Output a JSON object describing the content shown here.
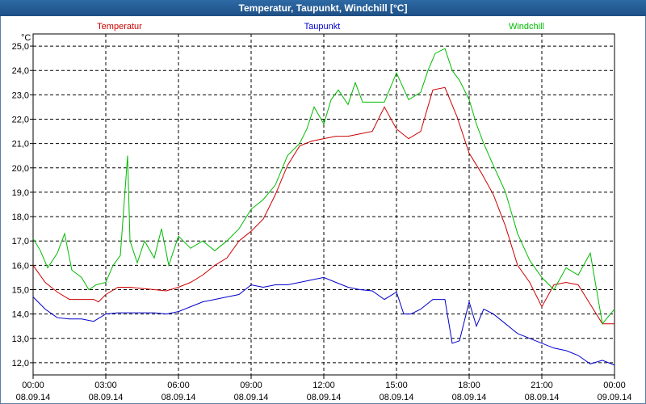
{
  "window": {
    "title": "Temperatur, Taupunkt, Windchill [°C]"
  },
  "chart_data": {
    "type": "line",
    "title": "Temperatur, Taupunkt, Windchill [°C]",
    "ylabel": "°C",
    "ylim": [
      11.5,
      25.5
    ],
    "xlim": [
      0,
      24
    ],
    "y_ticks": [
      12,
      13,
      14,
      15,
      16,
      17,
      18,
      19,
      20,
      21,
      22,
      23,
      24,
      25
    ],
    "y_tick_labels": [
      "12,0",
      "13,0",
      "14,0",
      "15,0",
      "16,0",
      "17,0",
      "18,0",
      "19,0",
      "20,0",
      "21,0",
      "22,0",
      "23,0",
      "24,0",
      "25,0"
    ],
    "x_ticks": [
      {
        "time": "00:00",
        "date": "08.09.14"
      },
      {
        "time": "03:00",
        "date": "08.09.14"
      },
      {
        "time": "06:00",
        "date": "08.09.14"
      },
      {
        "time": "09:00",
        "date": "08.09.14"
      },
      {
        "time": "12:00",
        "date": "08.09.14"
      },
      {
        "time": "15:00",
        "date": "08.09.14"
      },
      {
        "time": "18:00",
        "date": "08.09.14"
      },
      {
        "time": "21:00",
        "date": "08.09.14"
      },
      {
        "time": "00:00",
        "date": "09.09.14"
      }
    ],
    "grid": true,
    "series": [
      {
        "name": "Temperatur",
        "color": "#cc0000",
        "legend_position": "left",
        "x": [
          0,
          0.5,
          1,
          1.5,
          2,
          2.5,
          2.7,
          3,
          3.5,
          4,
          5,
          5.5,
          6,
          6.5,
          7,
          7.5,
          8,
          8.5,
          9,
          9.5,
          10,
          10.5,
          11,
          11.5,
          12,
          12.5,
          13,
          13.5,
          14,
          14.5,
          15,
          15.5,
          16,
          16.5,
          17,
          17.5,
          18,
          18.5,
          19,
          19.5,
          20,
          20.5,
          21,
          21.5,
          22,
          22.5,
          23,
          23.5,
          24
        ],
        "y": [
          16.0,
          15.3,
          14.9,
          14.6,
          14.6,
          14.6,
          14.5,
          14.8,
          15.1,
          15.1,
          15.0,
          14.95,
          15.1,
          15.3,
          15.6,
          16.0,
          16.3,
          17.0,
          17.4,
          17.9,
          18.9,
          20.1,
          20.9,
          21.1,
          21.2,
          21.3,
          21.3,
          21.4,
          21.5,
          22.5,
          21.6,
          21.2,
          21.5,
          23.2,
          23.3,
          22.1,
          20.6,
          19.8,
          18.9,
          17.6,
          16.0,
          15.3,
          14.3,
          15.2,
          15.3,
          15.2,
          14.4,
          13.6,
          13.6
        ]
      },
      {
        "name": "Taupunkt",
        "color": "#0000cc",
        "legend_position": "center",
        "x": [
          0,
          0.5,
          1,
          1.5,
          2,
          2.5,
          3,
          3.5,
          4,
          5,
          5.5,
          6,
          6.5,
          7,
          7.5,
          8,
          8.5,
          9,
          9.5,
          10,
          10.5,
          11,
          11.5,
          12,
          12.5,
          13,
          13.5,
          14,
          14.5,
          15,
          15.3,
          15.6,
          16,
          16.5,
          17,
          17.3,
          17.6,
          18,
          18.3,
          18.6,
          19,
          19.5,
          20,
          20.5,
          21,
          21.5,
          22,
          22.5,
          23,
          23.5,
          24
        ],
        "y": [
          14.7,
          14.2,
          13.85,
          13.8,
          13.8,
          13.7,
          14.0,
          14.05,
          14.05,
          14.05,
          14.0,
          14.1,
          14.3,
          14.5,
          14.6,
          14.7,
          14.8,
          15.2,
          15.1,
          15.2,
          15.2,
          15.3,
          15.4,
          15.5,
          15.3,
          15.1,
          15.0,
          14.95,
          14.6,
          14.9,
          14.0,
          14.0,
          14.2,
          14.6,
          14.6,
          12.8,
          12.9,
          14.5,
          13.5,
          14.2,
          14.0,
          13.6,
          13.2,
          13.0,
          12.8,
          12.6,
          12.5,
          12.3,
          11.95,
          12.1,
          11.9
        ]
      },
      {
        "name": "Windchill",
        "color": "#00bb00",
        "legend_position": "right",
        "x": [
          0,
          0.3,
          0.6,
          1,
          1.3,
          1.6,
          2,
          2.3,
          2.6,
          3,
          3.3,
          3.6,
          3.9,
          4,
          4.3,
          4.6,
          5,
          5.3,
          5.6,
          6,
          6.5,
          7,
          7.5,
          8,
          8.5,
          9,
          9.5,
          10,
          10.5,
          11,
          11.3,
          11.6,
          12,
          12.3,
          12.6,
          13,
          13.3,
          13.6,
          14,
          14.5,
          15,
          15.5,
          16,
          16.3,
          16.6,
          17,
          17.3,
          17.6,
          18,
          18.3,
          18.6,
          19,
          19.5,
          20,
          20.5,
          21,
          21.5,
          22,
          22.5,
          23,
          23.5,
          24
        ],
        "y": [
          17.1,
          16.6,
          15.9,
          16.5,
          17.3,
          15.8,
          15.5,
          15.0,
          15.2,
          15.3,
          16.0,
          16.4,
          20.5,
          17.0,
          16.1,
          17.0,
          16.3,
          17.5,
          16.0,
          17.2,
          16.7,
          17.0,
          16.6,
          17.0,
          17.5,
          18.3,
          18.7,
          19.3,
          20.5,
          21.0,
          21.6,
          22.5,
          21.8,
          22.8,
          23.2,
          22.6,
          23.5,
          22.7,
          22.7,
          22.7,
          23.9,
          22.8,
          23.1,
          24.0,
          24.7,
          24.9,
          24.0,
          23.6,
          22.8,
          21.8,
          21.0,
          20.1,
          19.0,
          17.3,
          16.2,
          15.5,
          15.0,
          15.9,
          15.6,
          16.5,
          13.6,
          14.2
        ]
      }
    ]
  }
}
